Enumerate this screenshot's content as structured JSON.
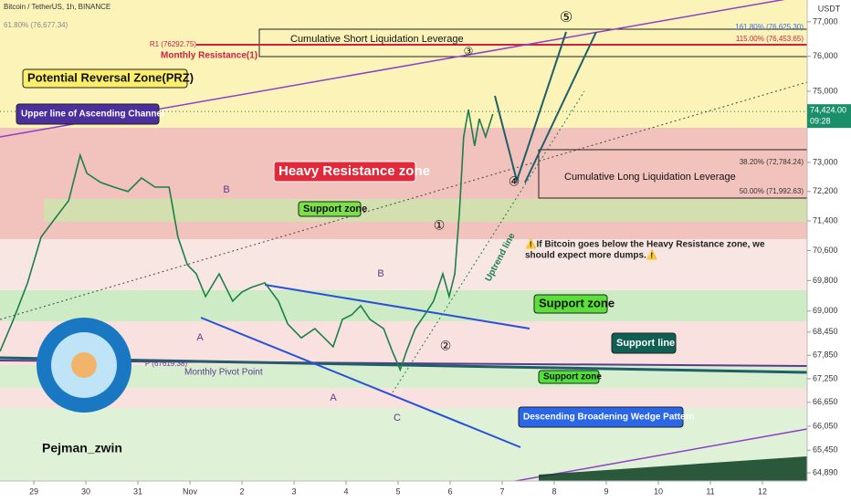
{
  "chart_data": {
    "type": "line",
    "title": "Bitcoin / TetherUS, 1h, BINANCE",
    "y_unit": "USDT",
    "log_scale": true,
    "x": [
      -0.65,
      -0.39,
      -0.12,
      0.14,
      0.4,
      0.67,
      0.89,
      1.02,
      1.28,
      1.54,
      1.81,
      2.07,
      2.33,
      2.6,
      2.77,
      2.95,
      3.12,
      3.3,
      3.56,
      3.82,
      4,
      4.18,
      4.44,
      4.7,
      4.88,
      5.14,
      5.4,
      5.58,
      5.75,
      5.93,
      6.11,
      6.28,
      6.46,
      6.72,
      6.89,
      7.04,
      7.16,
      7.33,
      7.51,
      7.68,
      7.86,
      7.98,
      8.09,
      8.18,
      8.26,
      8.35,
      8.47,
      8.56,
      8.68,
      8.82
    ],
    "series": [
      {
        "color": "#1b7f4c",
        "values": [
          67950,
          68780,
          69740,
          70960,
          71450,
          71950,
          73200,
          72700,
          72450,
          72320,
          72200,
          72570,
          72320,
          72320,
          70960,
          70220,
          69980,
          69380,
          69980,
          69260,
          69500,
          69620,
          69740,
          69260,
          68660,
          68300,
          68540,
          68300,
          68070,
          68780,
          68900,
          69140,
          68780,
          68540,
          67950,
          67480,
          67950,
          68540,
          68900,
          69260,
          69980,
          69380,
          69980,
          71700,
          73710,
          74480,
          73460,
          74220,
          73710,
          74350
        ]
      }
    ],
    "xlim": [
      -0.65,
      14.86
    ],
    "xticks": [
      {
        "value": 0,
        "label": "29"
      },
      {
        "value": 1,
        "label": "30"
      },
      {
        "value": 2,
        "label": "31"
      },
      {
        "value": 3,
        "label": "Nov"
      },
      {
        "value": 4,
        "label": "2"
      },
      {
        "value": 5,
        "label": "3"
      },
      {
        "value": 6,
        "label": "4"
      },
      {
        "value": 7,
        "label": "5"
      },
      {
        "value": 8,
        "label": "6"
      },
      {
        "value": 9,
        "label": "7"
      },
      {
        "value": 10,
        "label": "8"
      },
      {
        "value": 11,
        "label": "9"
      },
      {
        "value": 12,
        "label": "10"
      },
      {
        "value": 13,
        "label": "11"
      },
      {
        "value": 14,
        "label": "12"
      }
    ],
    "ylim": [
      64690,
      77640
    ],
    "yticks": [
      {
        "value": 77000,
        "label": "77,000"
      },
      {
        "value": 76000,
        "label": "76,000"
      },
      {
        "value": 75000,
        "label": "75,000"
      },
      {
        "value": 73000,
        "label": "73,000"
      },
      {
        "value": 72200,
        "label": "72,200"
      },
      {
        "value": 71400,
        "label": "71,400"
      },
      {
        "value": 70600,
        "label": "70,600"
      },
      {
        "value": 69800,
        "label": "69,800"
      },
      {
        "value": 69000,
        "label": "69,000"
      },
      {
        "value": 68450,
        "label": "68,450"
      },
      {
        "value": 67850,
        "label": "67,850"
      },
      {
        "value": 67250,
        "label": "67,250"
      },
      {
        "value": 66650,
        "label": "66,650"
      },
      {
        "value": 66050,
        "label": "66,050"
      },
      {
        "value": 65450,
        "label": "65,450"
      },
      {
        "value": 64890,
        "label": "64,890"
      }
    ],
    "last_price": {
      "value": 74424,
      "label": "74,424.00",
      "time": "09:28"
    },
    "price_levels": [
      "61.80% (76,677.34)",
      "161.80% (76,625.30)",
      "R1 (76292.75)",
      "115.00% (76,453.65)",
      "38.20% (72,784.24)",
      "50.00% (71,992.63)",
      "P (67619.38)"
    ],
    "annotations": [
      "Potential Reversal Zone(PRZ)",
      "Upper line of Ascending Channel",
      "Heavy Resistance zone",
      "Support zone",
      "Support zone",
      "Support zone",
      "Support line",
      "Descending Broadening Wedge Pattern",
      "Cumulative Short Liquidation Leverage",
      "Cumulative Long Liquidation Leverage",
      "Monthly Resistance(1)",
      "Monthly Pivot Point",
      "Uptrend line",
      "⚠️If Bitcoin goes below the Heavy Resistance zone, we",
      "should expect more dumps.⚠️",
      "Pejman_zwin"
    ],
    "wave_labels": [
      "⑤",
      "④",
      "③",
      "②",
      "①",
      "A",
      "B",
      "C",
      "A",
      "B"
    ]
  }
}
